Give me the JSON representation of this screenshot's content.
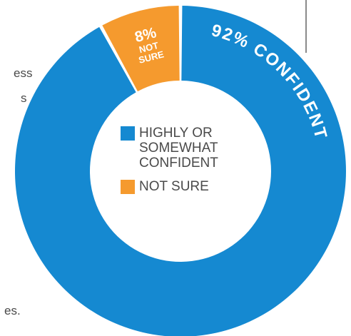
{
  "chart_data": {
    "type": "pie",
    "variant": "donut",
    "slices": [
      {
        "label": "HIGHLY OR SOMEWHAT CONFIDENT",
        "value": 92,
        "color": "#1589d1"
      },
      {
        "label": "NOT SURE",
        "value": 8,
        "color": "#f59a2e"
      }
    ],
    "slice_labels": [
      {
        "pct": "92%",
        "text": "CONFIDENT"
      },
      {
        "pct": "8%",
        "line1": "NOT",
        "line2": "SURE"
      }
    ],
    "legend": {
      "placement": "center",
      "items": [
        {
          "label_lines": [
            "HIGHLY OR",
            "SOMEWHAT",
            "CONFIDENT"
          ],
          "color": "#1589d1"
        },
        {
          "label_lines": [
            "NOT SURE"
          ],
          "color": "#f59a2e"
        }
      ]
    }
  },
  "page_fragments": {
    "left_1": "ess",
    "left_2": "s",
    "bottom_left": "es."
  }
}
